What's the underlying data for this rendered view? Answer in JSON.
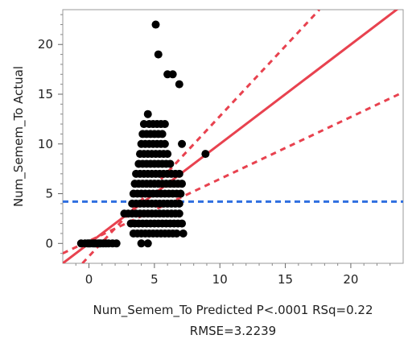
{
  "chart_data": {
    "type": "scatter",
    "xlabel_line1": "Num_Semem_To Predicted P<.0001 RSq=0.22",
    "xlabel_line2": "RMSE=3.2239",
    "ylabel": "Num_Semem_To Actual",
    "xlim": [
      -2,
      24
    ],
    "ylim": [
      -2,
      23.5
    ],
    "xticks": [
      0,
      5,
      10,
      15,
      20
    ],
    "yticks": [
      0,
      5,
      10,
      15,
      20
    ],
    "fit_line": {
      "x": [
        -2,
        24
      ],
      "y": [
        -2,
        24
      ]
    },
    "confidence_upper": {
      "x": [
        -0.5,
        17.6
      ],
      "y": [
        -2,
        23.5
      ]
    },
    "confidence_lower": {
      "x": [
        -2,
        24
      ],
      "y": [
        -1.0,
        15.2
      ]
    },
    "mean_line_y": 4.2,
    "colors": {
      "fit": "#e8424f",
      "confidence": "#e8424f",
      "mean": "#2f6fe0",
      "points": "#000000",
      "frame": "#9a9a9a"
    },
    "points": [
      [
        -0.6,
        0
      ],
      [
        -0.3,
        0
      ],
      [
        -0.1,
        0
      ],
      [
        0.1,
        0
      ],
      [
        0.3,
        0
      ],
      [
        0.5,
        0
      ],
      [
        0.7,
        0
      ],
      [
        0.9,
        0
      ],
      [
        1.1,
        0
      ],
      [
        1.3,
        0
      ],
      [
        1.5,
        0
      ],
      [
        1.8,
        0
      ],
      [
        2.1,
        0
      ],
      [
        0.0,
        0
      ],
      [
        0.4,
        0
      ],
      [
        0.8,
        0
      ],
      [
        5.1,
        22
      ],
      [
        5.3,
        19
      ],
      [
        6.0,
        17
      ],
      [
        6.4,
        17
      ],
      [
        6.9,
        16
      ],
      [
        7.1,
        10
      ],
      [
        8.9,
        9
      ],
      [
        4.5,
        0
      ],
      [
        4.5,
        13
      ],
      [
        4.2,
        12
      ],
      [
        4.6,
        12
      ],
      [
        4.9,
        12
      ],
      [
        5.2,
        12
      ],
      [
        5.5,
        12
      ],
      [
        5.8,
        12
      ],
      [
        4.1,
        11
      ],
      [
        4.4,
        11
      ],
      [
        4.7,
        11
      ],
      [
        5.0,
        11
      ],
      [
        5.3,
        11
      ],
      [
        5.6,
        11
      ],
      [
        4.0,
        10
      ],
      [
        4.3,
        10
      ],
      [
        4.6,
        10
      ],
      [
        4.9,
        10
      ],
      [
        5.2,
        10
      ],
      [
        5.5,
        10
      ],
      [
        5.8,
        10
      ],
      [
        3.9,
        9
      ],
      [
        4.2,
        9
      ],
      [
        4.5,
        9
      ],
      [
        4.8,
        9
      ],
      [
        5.1,
        9
      ],
      [
        5.4,
        9
      ],
      [
        5.7,
        9
      ],
      [
        6.0,
        9
      ],
      [
        3.8,
        8
      ],
      [
        4.1,
        8
      ],
      [
        4.4,
        8
      ],
      [
        4.7,
        8
      ],
      [
        5.0,
        8
      ],
      [
        5.3,
        8
      ],
      [
        5.6,
        8
      ],
      [
        5.9,
        8
      ],
      [
        6.2,
        8
      ],
      [
        3.6,
        7
      ],
      [
        3.9,
        7
      ],
      [
        4.2,
        7
      ],
      [
        4.5,
        7
      ],
      [
        4.8,
        7
      ],
      [
        5.1,
        7
      ],
      [
        5.4,
        7
      ],
      [
        5.7,
        7
      ],
      [
        6.0,
        7
      ],
      [
        6.3,
        7
      ],
      [
        6.6,
        7
      ],
      [
        6.9,
        7
      ],
      [
        3.5,
        6
      ],
      [
        3.8,
        6
      ],
      [
        4.1,
        6
      ],
      [
        4.4,
        6
      ],
      [
        4.7,
        6
      ],
      [
        5.0,
        6
      ],
      [
        5.3,
        6
      ],
      [
        5.6,
        6
      ],
      [
        5.9,
        6
      ],
      [
        6.2,
        6
      ],
      [
        6.5,
        6
      ],
      [
        6.8,
        6
      ],
      [
        7.1,
        6
      ],
      [
        3.4,
        5
      ],
      [
        3.7,
        5
      ],
      [
        4.0,
        5
      ],
      [
        4.3,
        5
      ],
      [
        4.6,
        5
      ],
      [
        4.9,
        5
      ],
      [
        5.2,
        5
      ],
      [
        5.5,
        5
      ],
      [
        5.8,
        5
      ],
      [
        6.1,
        5
      ],
      [
        6.4,
        5
      ],
      [
        6.7,
        5
      ],
      [
        7.0,
        5
      ],
      [
        3.3,
        4
      ],
      [
        3.6,
        4
      ],
      [
        3.9,
        4
      ],
      [
        4.2,
        4
      ],
      [
        4.5,
        4
      ],
      [
        4.8,
        4
      ],
      [
        5.1,
        4
      ],
      [
        5.4,
        4
      ],
      [
        5.7,
        4
      ],
      [
        6.0,
        4
      ],
      [
        6.3,
        4
      ],
      [
        6.6,
        4
      ],
      [
        6.9,
        4
      ],
      [
        2.7,
        3
      ],
      [
        3.0,
        3
      ],
      [
        3.3,
        3
      ],
      [
        3.6,
        3
      ],
      [
        3.9,
        3
      ],
      [
        4.2,
        3
      ],
      [
        4.5,
        3
      ],
      [
        4.8,
        3
      ],
      [
        5.1,
        3
      ],
      [
        5.4,
        3
      ],
      [
        5.7,
        3
      ],
      [
        6.0,
        3
      ],
      [
        6.3,
        3
      ],
      [
        6.6,
        3
      ],
      [
        6.9,
        3
      ],
      [
        3.2,
        2
      ],
      [
        3.5,
        2
      ],
      [
        3.8,
        2
      ],
      [
        4.1,
        2
      ],
      [
        4.4,
        2
      ],
      [
        4.7,
        2
      ],
      [
        5.0,
        2
      ],
      [
        5.3,
        2
      ],
      [
        5.6,
        2
      ],
      [
        5.9,
        2
      ],
      [
        6.2,
        2
      ],
      [
        6.5,
        2
      ],
      [
        6.8,
        2
      ],
      [
        7.1,
        2
      ],
      [
        3.4,
        1
      ],
      [
        3.7,
        1
      ],
      [
        4.0,
        1
      ],
      [
        4.3,
        1
      ],
      [
        4.6,
        1
      ],
      [
        4.9,
        1
      ],
      [
        5.2,
        1
      ],
      [
        5.5,
        1
      ],
      [
        5.8,
        1
      ],
      [
        6.1,
        1
      ],
      [
        6.4,
        1
      ],
      [
        6.7,
        1
      ],
      [
        7.2,
        1
      ],
      [
        4.0,
        0
      ]
    ]
  }
}
